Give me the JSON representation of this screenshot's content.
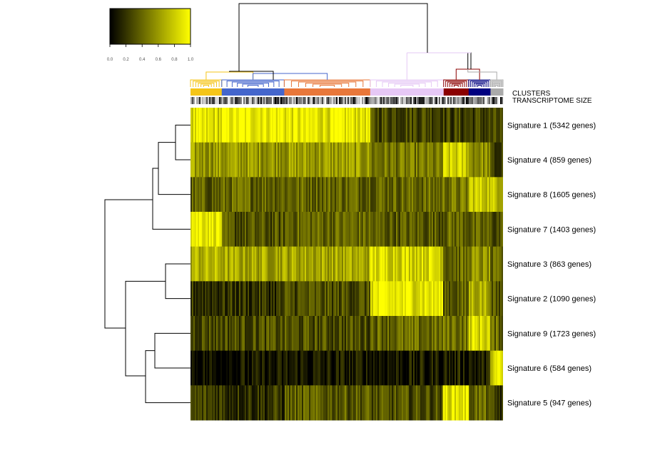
{
  "chart_data": {
    "type": "heatmap",
    "title": "",
    "color_scale": {
      "low": "#000000",
      "high": "#ffff00",
      "range": [
        0,
        1
      ],
      "tick_labels": [
        "0.0",
        "0.2",
        "0.4",
        "0.6",
        "0.8",
        "1.0"
      ]
    },
    "annotation_labels": [
      "CLUSTERS",
      "TRANSCRIPTOME SIZE"
    ],
    "clusters": [
      {
        "name": "yellow",
        "color": "#f5c518",
        "width": 0.1
      },
      {
        "name": "blue",
        "color": "#4466cc",
        "width": 0.2
      },
      {
        "name": "orange",
        "color": "#e8773a",
        "width": 0.275
      },
      {
        "name": "lavender",
        "color": "#e6c8f5",
        "width": 0.235
      },
      {
        "name": "darkred",
        "color": "#8b0000",
        "width": 0.08
      },
      {
        "name": "navy",
        "color": "#000080",
        "width": 0.07
      },
      {
        "name": "grey",
        "color": "#aaaaaa",
        "width": 0.04
      }
    ],
    "rows": [
      {
        "label": "Signature 1 (5342 genes)",
        "values": [
          0.85,
          0.95,
          0.9,
          0.3,
          0.25,
          0.25,
          0.25
        ]
      },
      {
        "label": "Signature 4 (859 genes)",
        "values": [
          0.6,
          0.6,
          0.6,
          0.45,
          0.8,
          0.55,
          0.2
        ]
      },
      {
        "label": "Signature 8 (1605 genes)",
        "values": [
          0.35,
          0.4,
          0.4,
          0.4,
          0.45,
          0.8,
          0.75
        ]
      },
      {
        "label": "Signature 7 (1403 genes)",
        "values": [
          0.95,
          0.3,
          0.4,
          0.35,
          0.4,
          0.35,
          0.3
        ]
      },
      {
        "label": "Signature 3 (863 genes)",
        "values": [
          0.7,
          0.65,
          0.65,
          0.85,
          0.4,
          0.55,
          0.35
        ]
      },
      {
        "label": "Signature 2 (1090 genes)",
        "values": [
          0.2,
          0.2,
          0.3,
          0.9,
          0.35,
          0.7,
          0.3
        ]
      },
      {
        "label": "Signature 9 (1723 genes)",
        "values": [
          0.3,
          0.3,
          0.3,
          0.4,
          0.45,
          0.85,
          0.4
        ]
      },
      {
        "label": "Signature 6 (584 genes)",
        "values": [
          0.05,
          0.05,
          0.08,
          0.08,
          0.1,
          0.1,
          0.85
        ]
      },
      {
        "label": "Signature 5 (947 genes)",
        "values": [
          0.25,
          0.2,
          0.35,
          0.3,
          0.9,
          0.4,
          0.2
        ]
      }
    ]
  }
}
